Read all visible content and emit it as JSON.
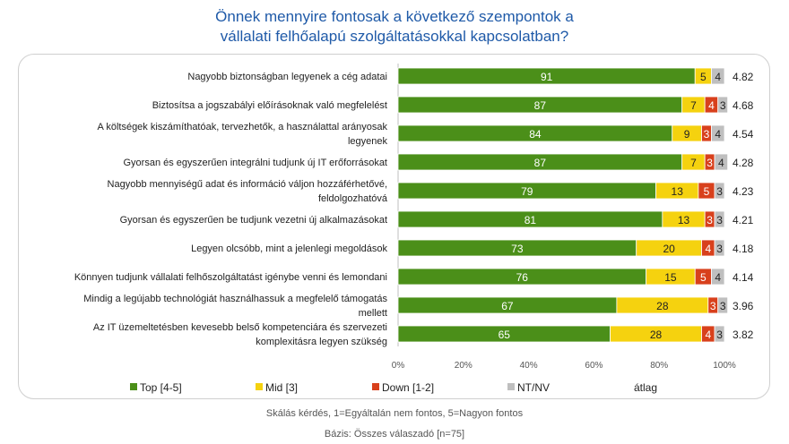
{
  "title_lines": [
    "Önnek mennyire fontosak a következő szempontok a",
    "vállalati felhőalapú szolgáltatásokkal kapcsolatban?"
  ],
  "footer": {
    "note": "Skálás kérdés, 1=Egyáltalán nem fontos, 5=Nagyon fontos",
    "base": "Bázis: Összes válaszadó [n=75]"
  },
  "chart_data": {
    "type": "bar",
    "orientation": "horizontal-stacked-100",
    "categories": [
      "Nagyobb biztonságban legyenek a cég adatai",
      "Biztosítsa a jogszabályi előírásoknak való megfelelést",
      "A költségek kiszámíthatóak, tervezhetők, a használattal arányosak legyenek",
      "Gyorsan és egyszerűen integrálni tudjunk új IT erőforrásokat",
      "Nagyobb mennyiségű adat és információ váljon hozzáférhetővé, feldolgozhatóvá",
      "Gyorsan és egyszerűen be tudjunk vezetni új alkalmazásokat",
      "Legyen olcsóbb, mint a jelenlegi megoldások",
      "Könnyen tudjunk vállalati felhőszolgáltatást igénybe venni és lemondani",
      "Mindig a legújabb technológiát használhassuk a megfelelő támogatás mellett",
      "Az  IT üzemeltetésben kevesebb belső kompetenciára és szervezeti komplexitásra legyen szükség"
    ],
    "category_lines": [
      [
        "Nagyobb biztonságban legyenek a cég adatai"
      ],
      [
        "Biztosítsa a jogszabályi előírásoknak való megfelelést"
      ],
      [
        "A költségek kiszámíthatóak, tervezhetők, a használattal arányosak",
        "legyenek"
      ],
      [
        "Gyorsan és egyszerűen integrálni tudjunk új IT erőforrásokat"
      ],
      [
        "Nagyobb mennyiségű adat és információ váljon hozzáférhetővé,",
        "feldolgozhatóvá"
      ],
      [
        "Gyorsan és egyszerűen be tudjunk vezetni új alkalmazásokat"
      ],
      [
        "Legyen olcsóbb, mint a jelenlegi megoldások"
      ],
      [
        "Könnyen tudjunk vállalati felhőszolgáltatást igénybe venni és lemondani"
      ],
      [
        "Mindig a legújabb technológiát használhassuk a megfelelő támogatás",
        "mellett"
      ],
      [
        "Az  IT üzemeltetésben kevesebb belső kompetenciára és szervezeti",
        "komplexitásra legyen szükség"
      ]
    ],
    "series": [
      {
        "name": "Top [4-5]",
        "color": "#4b8f19",
        "label_color": "#ffffff",
        "values": [
          91,
          87,
          84,
          87,
          79,
          81,
          73,
          76,
          67,
          65
        ]
      },
      {
        "name": "Mid [3]",
        "color": "#f5d20f",
        "label_color": "#222222",
        "values": [
          5,
          7,
          9,
          7,
          13,
          13,
          20,
          15,
          28,
          28
        ]
      },
      {
        "name": "Down [1-2]",
        "color": "#d8401c",
        "label_color": "#ffffff",
        "values": [
          0,
          4,
          3,
          3,
          5,
          3,
          4,
          5,
          3,
          4
        ]
      },
      {
        "name": "NT/NV",
        "color": "#bfbfbf",
        "label_color": "#222222",
        "values": [
          4,
          3,
          4,
          4,
          3,
          3,
          3,
          4,
          3,
          3
        ]
      }
    ],
    "average_label": "átlag",
    "averages": [
      "4.82",
      "4.68",
      "4.54",
      "4.28",
      "4.23",
      "4.21",
      "4.18",
      "4.14",
      "3.96",
      "3.82"
    ],
    "x_ticks": [
      "0%",
      "20%",
      "40%",
      "60%",
      "80%",
      "100%"
    ],
    "xlim": [
      0,
      100
    ],
    "grid": false,
    "legend_position": "bottom"
  }
}
